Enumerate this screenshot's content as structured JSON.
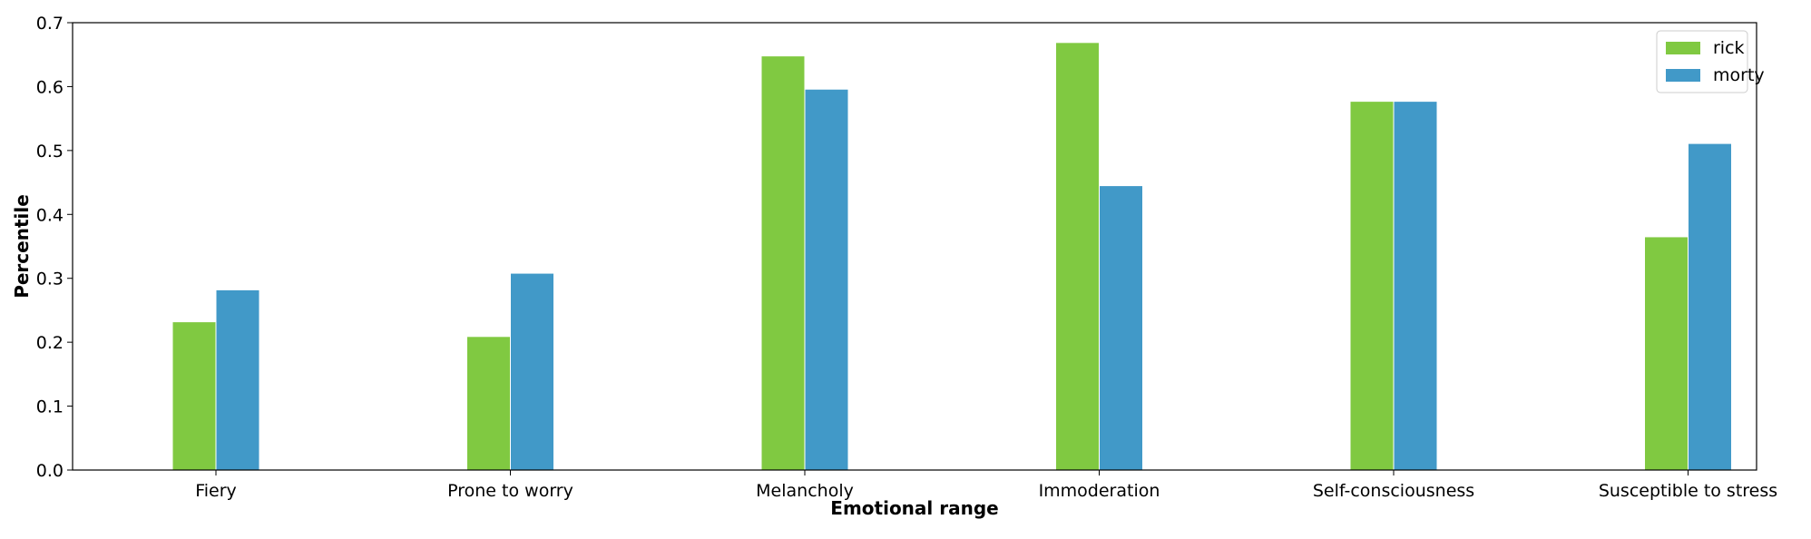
{
  "chart_data": {
    "type": "bar",
    "title": "",
    "xlabel": "Emotional range",
    "ylabel": "Percentile",
    "categories": [
      "Fiery",
      "Prone to worry",
      "Melancholy",
      "Immoderation",
      "Self-consciousness",
      "Susceptible to stress"
    ],
    "series": [
      {
        "name": "rick",
        "color": "#80c941",
        "values": [
          0.232,
          0.209,
          0.648,
          0.669,
          0.577,
          0.365
        ]
      },
      {
        "name": "morty",
        "color": "#4199c8",
        "values": [
          0.282,
          0.308,
          0.596,
          0.445,
          0.577,
          0.511
        ]
      }
    ],
    "ylim": [
      0,
      0.7
    ],
    "yticks": [
      "0.0",
      "0.1",
      "0.2",
      "0.3",
      "0.4",
      "0.5",
      "0.6",
      "0.7"
    ],
    "grid": false,
    "legend_position": "top-right"
  }
}
